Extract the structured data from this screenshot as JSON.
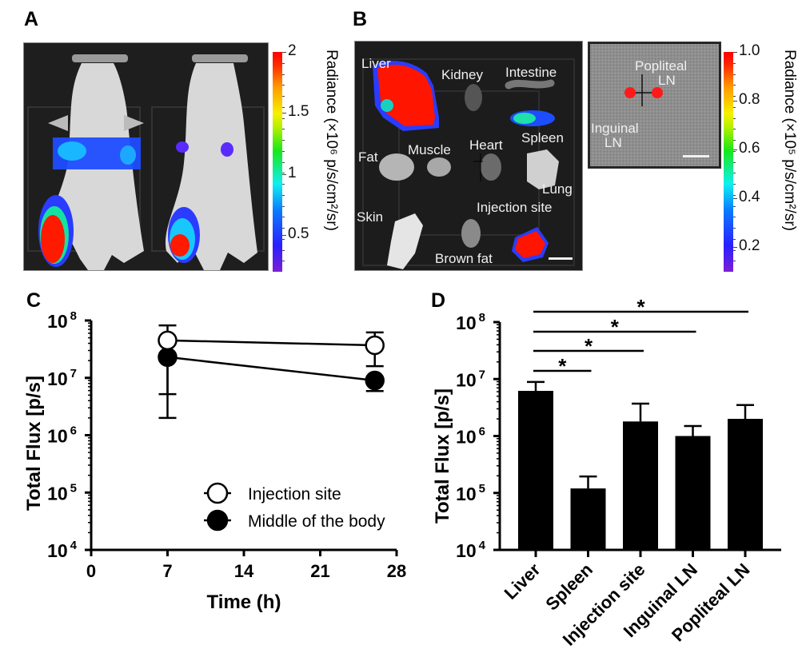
{
  "figure": {
    "panels": {
      "A": {
        "letter": "A",
        "image_description": "Dorsal view of two mice with bioluminescence overlay at the injection site (hind limb) and middle of the body",
        "colorbar": {
          "title": "Radiance (×10⁶ p/s/cm²/sr)",
          "ticks": [
            "2",
            "1.5",
            "1",
            "0.5"
          ],
          "tick_values": [
            2,
            1.5,
            1,
            0.5
          ],
          "range": [
            0.2,
            2
          ]
        }
      },
      "B": {
        "letter": "B",
        "organ_labels": [
          "Liver",
          "Kidney",
          "Intestine",
          "Fat",
          "Muscle",
          "Heart",
          "Spleen",
          "Lung",
          "Skin",
          "Injection site",
          "Brown fat"
        ],
        "ln_labels": {
          "popliteal_line1": "Popliteal",
          "popliteal_line2": "LN",
          "inguinal_line1": "Inguinal",
          "inguinal_line2": "LN"
        },
        "colorbar": {
          "title": "Radiance (×10⁵ p/s/cm²/sr)",
          "ticks": [
            "1.0",
            "0.8",
            "0.6",
            "0.4",
            "0.2"
          ],
          "tick_values": [
            1.0,
            0.8,
            0.6,
            0.4,
            0.2
          ],
          "range": [
            0.1,
            1.0
          ]
        }
      },
      "C": {
        "letter": "C"
      },
      "D": {
        "letter": "D"
      }
    }
  },
  "chart_data": [
    {
      "panel": "C",
      "type": "line",
      "title": "",
      "xlabel": "Time (h)",
      "ylabel": "Total Flux [p/s]",
      "xlim": [
        0,
        28
      ],
      "xticks": [
        "0",
        "7",
        "14",
        "21",
        "28"
      ],
      "xtick_values": [
        0,
        7,
        14,
        21,
        28
      ],
      "yscale": "log",
      "ylim": [
        10000,
        100000000
      ],
      "yticks": [
        {
          "base": "10",
          "exp": "8",
          "value": 100000000
        },
        {
          "base": "10",
          "exp": "7",
          "value": 10000000
        },
        {
          "base": "10",
          "exp": "6",
          "value": 1000000
        },
        {
          "base": "10",
          "exp": "5",
          "value": 100000
        },
        {
          "base": "10",
          "exp": "4",
          "value": 10000
        }
      ],
      "legend_position": "bottom-right",
      "series": [
        {
          "name": "Injection site",
          "marker": "open-circle",
          "x": [
            7,
            26
          ],
          "y": [
            45000000,
            37000000
          ],
          "err_upper": [
            82000000,
            62000000
          ],
          "err_lower": [
            5200000,
            16000000
          ]
        },
        {
          "name": "Middle of the body",
          "marker": "filled-circle",
          "x": [
            7,
            26
          ],
          "y": [
            23000000,
            9000000
          ],
          "err_upper": [
            null,
            null
          ],
          "err_lower": [
            2000000,
            5900000
          ]
        }
      ]
    },
    {
      "panel": "D",
      "type": "bar",
      "title": "",
      "xlabel": "",
      "ylabel": "Total Flux [p/s]",
      "yscale": "log",
      "ylim": [
        10000,
        100000000
      ],
      "yticks": [
        {
          "base": "10",
          "exp": "8",
          "value": 100000000
        },
        {
          "base": "10",
          "exp": "7",
          "value": 10000000
        },
        {
          "base": "10",
          "exp": "6",
          "value": 1000000
        },
        {
          "base": "10",
          "exp": "5",
          "value": 100000
        },
        {
          "base": "10",
          "exp": "4",
          "value": 10000
        }
      ],
      "categories": [
        "Liver",
        "Spleen",
        "Injection site",
        "Inguinal LN",
        "Popliteal LN"
      ],
      "values": [
        6200000,
        120000,
        1800000,
        1000000,
        2000000
      ],
      "err_upper": [
        8900000,
        195000,
        3700000,
        1500000,
        3500000
      ],
      "significance": [
        {
          "from": "Liver",
          "to": "Spleen",
          "label": "*"
        },
        {
          "from": "Liver",
          "to": "Injection site",
          "label": "*"
        },
        {
          "from": "Liver",
          "to": "Inguinal LN",
          "label": "*"
        },
        {
          "from": "Liver",
          "to": "Popliteal LN",
          "label": "*"
        }
      ]
    }
  ]
}
